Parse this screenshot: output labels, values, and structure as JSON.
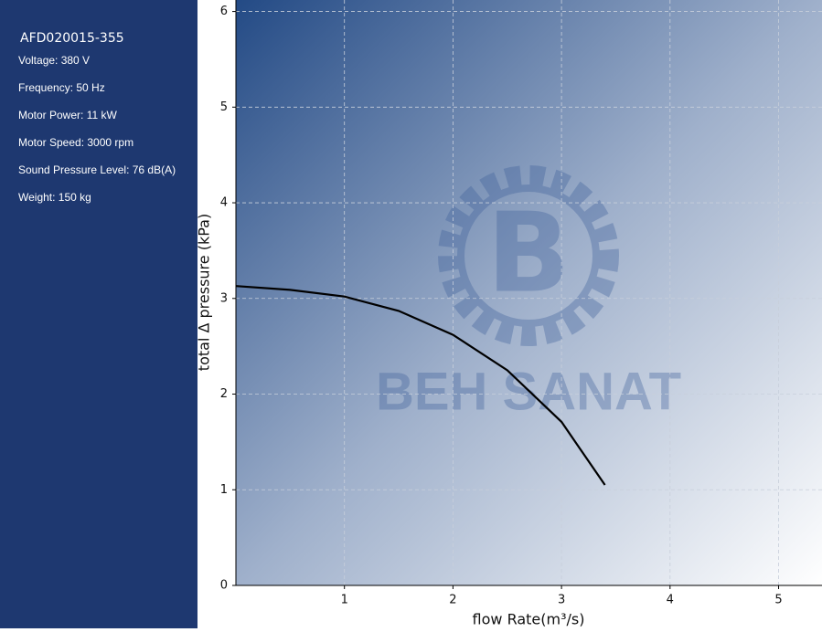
{
  "sidebar": {
    "title": "AFD020015-355",
    "specs": [
      "Voltage: 380 V",
      "Frequency: 50 Hz",
      "Motor Power: 11 kW",
      "Motor Speed: 3000 rpm",
      "Sound Pressure Level: 76 dB(A)",
      "Weight: 150 kg"
    ]
  },
  "chart_data": {
    "type": "line",
    "xlabel": "flow Rate(m³/s)",
    "ylabel": "total Δ pressure (kPa)",
    "watermark": "BEH SANAT",
    "x": [
      0,
      0.5,
      1,
      1.5,
      2,
      2.5,
      3,
      3.4
    ],
    "series": [
      {
        "name": "AFD020015-355",
        "color": "#000000",
        "values": [
          3.13,
          3.09,
          3.02,
          2.87,
          2.62,
          2.25,
          1.71,
          1.05
        ]
      }
    ],
    "xlim": [
      0,
      5.4
    ],
    "ylim": [
      0,
      6.12
    ],
    "xticks": [
      1,
      2,
      3,
      4,
      5
    ],
    "yticks": [
      0,
      1,
      2,
      3,
      4,
      5,
      6
    ],
    "grid": true
  }
}
